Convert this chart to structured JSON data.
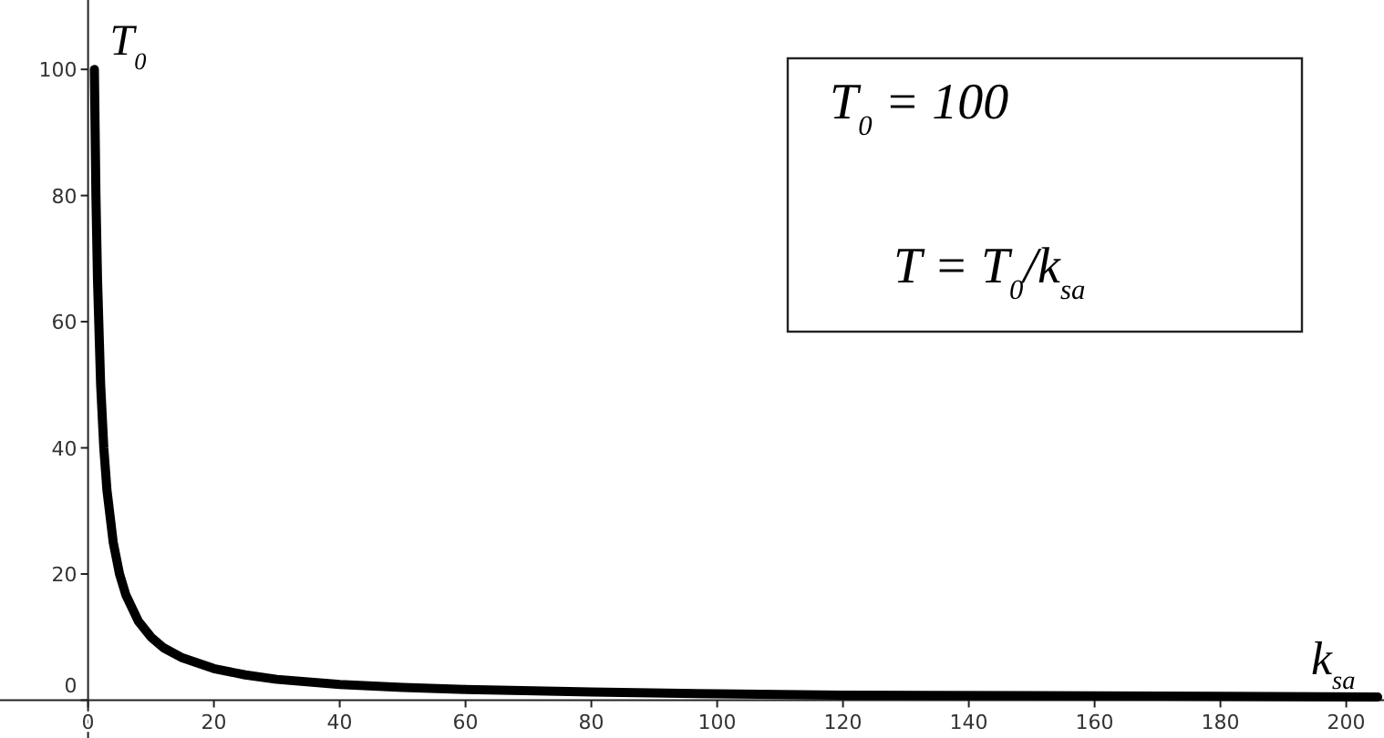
{
  "chart_data": {
    "type": "line",
    "xlabel": "k$_{sa}$",
    "ylabel": "T$_{0}$",
    "annotations": [
      "T$_{0}$ = 100",
      "T = T$_{0}$/k$_{sa}$"
    ],
    "x": [
      1,
      1.25,
      1.5,
      2,
      2.5,
      3,
      4,
      5,
      6,
      8,
      10,
      12,
      15,
      20,
      25,
      30,
      40,
      50,
      60,
      80,
      100,
      120,
      150,
      180,
      205
    ],
    "series": [
      {
        "color": "#000000",
        "values": [
          100,
          80,
          66.7,
          50,
          40,
          33.3,
          25,
          20,
          16.7,
          12.5,
          10,
          8.3,
          6.7,
          5,
          4,
          3.3,
          2.5,
          2,
          1.7,
          1.3,
          1,
          0.8,
          0.7,
          0.6,
          0.5
        ]
      }
    ],
    "xlim": [
      -14,
      206
    ],
    "ylim": [
      -6,
      111
    ],
    "xticks": [
      0,
      20,
      40,
      60,
      80,
      100,
      120,
      140,
      160,
      180,
      200
    ],
    "yticks": [
      0,
      20,
      40,
      60,
      80,
      100
    ],
    "marker": "none",
    "line_style": "solid"
  }
}
